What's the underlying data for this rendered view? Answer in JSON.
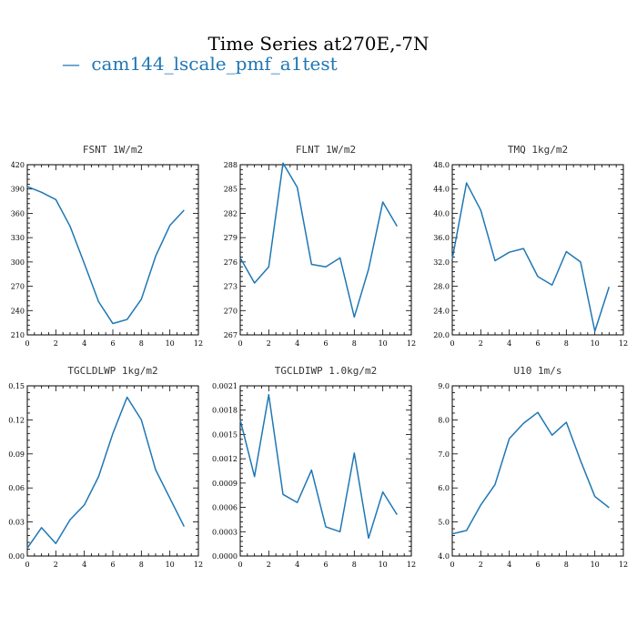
{
  "figure": {
    "title": "Time Series at270E,-7N",
    "legend": [
      {
        "symbol": "—",
        "label": "cam144_lscale_pmf_a1test",
        "color": "#1f77b4"
      }
    ]
  },
  "chart_data": [
    {
      "type": "line",
      "title": "FSNT   1W/m2",
      "xlim": [
        0,
        12
      ],
      "ylim": [
        210,
        420
      ],
      "xticks": [
        "0",
        "2",
        "4",
        "6",
        "8",
        "10",
        "12"
      ],
      "yticks": [
        "210",
        "240",
        "270",
        "300",
        "330",
        "360",
        "390",
        "420"
      ],
      "series": [
        {
          "color": "#1f77b4",
          "x": [
            0,
            1,
            2,
            3,
            4,
            5,
            6,
            7,
            8,
            9,
            10,
            11
          ],
          "values": [
            393,
            386,
            377,
            344,
            298,
            251,
            224,
            229,
            254,
            307,
            345,
            364
          ]
        }
      ]
    },
    {
      "type": "line",
      "title": "FLNT   1W/m2",
      "xlim": [
        0,
        12
      ],
      "ylim": [
        267,
        288
      ],
      "xticks": [
        "0",
        "2",
        "4",
        "6",
        "8",
        "10",
        "12"
      ],
      "yticks": [
        "267",
        "270",
        "273",
        "276",
        "279",
        "282",
        "285",
        "288"
      ],
      "series": [
        {
          "color": "#1f77b4",
          "x": [
            0,
            1,
            2,
            3,
            4,
            5,
            6,
            7,
            8,
            9,
            10,
            11
          ],
          "values": [
            276.5,
            273.4,
            275.4,
            288.2,
            285.2,
            275.7,
            275.4,
            276.5,
            269.2,
            275.1,
            283.4,
            280.4
          ]
        }
      ]
    },
    {
      "type": "line",
      "title": "TMQ   1kg/m2",
      "xlim": [
        0,
        12
      ],
      "ylim": [
        20.0,
        48.0
      ],
      "xticks": [
        "0",
        "2",
        "4",
        "6",
        "8",
        "10",
        "12"
      ],
      "yticks": [
        "20.0",
        "24.0",
        "28.0",
        "32.0",
        "36.0",
        "40.0",
        "44.0",
        "48.0"
      ],
      "series": [
        {
          "color": "#1f77b4",
          "x": [
            0,
            1,
            2,
            3,
            4,
            5,
            6,
            7,
            8,
            9,
            10,
            11
          ],
          "values": [
            32.5,
            45.0,
            40.5,
            32.2,
            33.6,
            34.2,
            29.6,
            28.2,
            33.7,
            32.0,
            20.6,
            27.9
          ]
        }
      ]
    },
    {
      "type": "line",
      "title": "TGCLDLWP   1kg/m2",
      "xlim": [
        0,
        12
      ],
      "ylim": [
        0.0,
        0.15
      ],
      "xticks": [
        "0",
        "2",
        "4",
        "6",
        "8",
        "10",
        "12"
      ],
      "yticks": [
        "0.00",
        "0.03",
        "0.06",
        "0.09",
        "0.12",
        "0.15"
      ],
      "series": [
        {
          "color": "#1f77b4",
          "x": [
            0,
            1,
            2,
            3,
            4,
            5,
            6,
            7,
            8,
            9,
            10,
            11
          ],
          "values": [
            0.007,
            0.025,
            0.011,
            0.032,
            0.045,
            0.07,
            0.108,
            0.14,
            0.12,
            0.076,
            0.051,
            0.026
          ]
        }
      ]
    },
    {
      "type": "line",
      "title": "TGCLDIWP   1.0kg/m2",
      "xlim": [
        0,
        12
      ],
      "ylim": [
        0.0,
        0.0021
      ],
      "xticks": [
        "0",
        "2",
        "4",
        "6",
        "8",
        "10",
        "12"
      ],
      "yticks": [
        "0.0000",
        "0.0003",
        "0.0006",
        "0.0009",
        "0.0012",
        "0.0015",
        "0.0018",
        "0.0021"
      ],
      "series": [
        {
          "color": "#1f77b4",
          "x": [
            0,
            1,
            2,
            3,
            4,
            5,
            6,
            7,
            8,
            9,
            10,
            11
          ],
          "values": [
            0.00168,
            0.00098,
            0.00199,
            0.00076,
            0.00066,
            0.00106,
            0.00036,
            0.0003,
            0.00127,
            0.00022,
            0.00079,
            0.00051
          ]
        }
      ]
    },
    {
      "type": "line",
      "title": "U10   1m/s",
      "xlim": [
        0,
        12
      ],
      "ylim": [
        4.0,
        9.0
      ],
      "xticks": [
        "0",
        "2",
        "4",
        "6",
        "8",
        "10",
        "12"
      ],
      "yticks": [
        "4.0",
        "5.0",
        "6.0",
        "7.0",
        "8.0",
        "9.0"
      ],
      "series": [
        {
          "color": "#1f77b4",
          "x": [
            0,
            1,
            2,
            3,
            4,
            5,
            6,
            7,
            8,
            9,
            10,
            11
          ],
          "values": [
            4.65,
            4.75,
            5.5,
            6.1,
            7.45,
            7.9,
            8.22,
            7.55,
            7.93,
            6.8,
            5.75,
            5.42
          ]
        }
      ]
    }
  ]
}
